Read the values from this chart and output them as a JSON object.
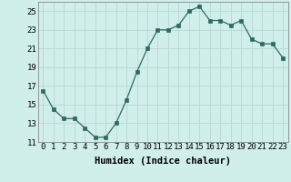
{
  "xlabel": "Humidex (Indice chaleur)",
  "ylabel": "",
  "x": [
    0,
    1,
    2,
    3,
    4,
    5,
    6,
    7,
    8,
    9,
    10,
    11,
    12,
    13,
    14,
    15,
    16,
    17,
    18,
    19,
    20,
    21,
    22,
    23
  ],
  "y": [
    16.5,
    14.5,
    13.5,
    13.5,
    12.5,
    11.5,
    11.5,
    13.0,
    15.5,
    18.5,
    21.0,
    23.0,
    23.0,
    23.5,
    25.0,
    25.5,
    24.0,
    24.0,
    23.5,
    24.0,
    22.0,
    21.5,
    21.5,
    20.0
  ],
  "line_color": "#2e6b5e",
  "marker": "s",
  "marker_size": 2.2,
  "bg_color": "#d0eeea",
  "grid_color": "#b8d8d4",
  "ylim": [
    11,
    26
  ],
  "xlim": [
    -0.5,
    23.5
  ],
  "yticks": [
    11,
    13,
    15,
    17,
    19,
    21,
    23,
    25
  ],
  "xtick_labels": [
    "0",
    "1",
    "2",
    "3",
    "4",
    "5",
    "6",
    "7",
    "8",
    "9",
    "10",
    "11",
    "12",
    "13",
    "14",
    "15",
    "16",
    "17",
    "18",
    "19",
    "20",
    "21",
    "22",
    "23"
  ],
  "xlabel_fontsize": 7.5,
  "tick_fontsize": 6.5,
  "spine_color": "#888888",
  "line_width": 0.9
}
